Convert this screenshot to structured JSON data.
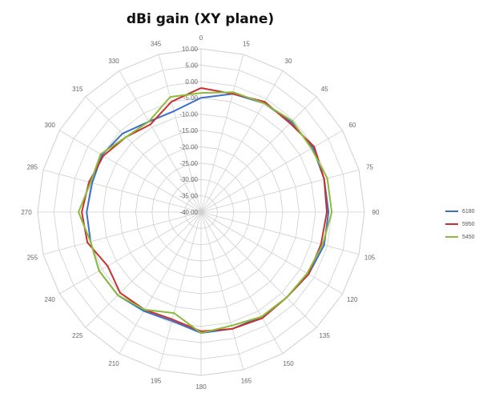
{
  "chart_data": {
    "type": "radar",
    "title": "dBi gain (XY plane)",
    "angles": [
      0,
      15,
      30,
      45,
      60,
      75,
      90,
      105,
      120,
      135,
      150,
      165,
      180,
      195,
      210,
      225,
      240,
      255,
      270,
      285,
      300,
      315,
      330,
      345
    ],
    "radial_ticks": [
      "10.00",
      "5.00",
      "0.00",
      "-5.00",
      "-10.00",
      "-15.00",
      "-20.00",
      "-25.00",
      "-30.00",
      "-35.00",
      "-40.00"
    ],
    "rlim": [
      -40,
      10
    ],
    "grid": true,
    "legend_position": "right",
    "series": [
      {
        "name": "6180",
        "color": "#3c6fc7",
        "values": [
          -5.0,
          -2.5,
          -1.5,
          -1.0,
          -0.5,
          -1.0,
          -1.0,
          -1.0,
          -2.0,
          -3.0,
          -3.0,
          -3.0,
          -3.0,
          -5.5,
          -5.0,
          -4.0,
          -4.0,
          -5.0,
          -5.0,
          -5.5,
          -5.0,
          -6.0,
          -8.0,
          -8.0
        ]
      },
      {
        "name": "5950",
        "color": "#c8312f",
        "values": [
          -2.0,
          -2.5,
          -1.0,
          -1.5,
          0.0,
          -1.0,
          -1.5,
          -2.0,
          -2.0,
          -3.0,
          -2.5,
          -3.0,
          -3.5,
          -6.0,
          -5.5,
          -5.0,
          -7.0,
          -4.0,
          -3.5,
          -4.5,
          -5.5,
          -7.5,
          -9.0,
          -5.0
        ]
      },
      {
        "name": "5450",
        "color": "#8dbb3a",
        "values": [
          -3.5,
          -2.0,
          -1.5,
          -0.5,
          -1.0,
          0.0,
          0.0,
          -1.5,
          -2.5,
          -3.0,
          -3.0,
          -4.0,
          -3.0,
          -8.0,
          -5.5,
          -4.0,
          -4.0,
          -5.0,
          -2.5,
          -5.0,
          -4.5,
          -7.5,
          -8.0,
          -3.5
        ]
      }
    ]
  }
}
